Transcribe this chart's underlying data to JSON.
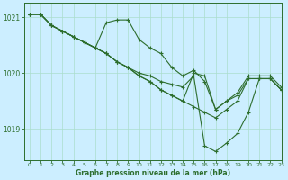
{
  "title": "Graphe pression niveau de la mer (hPa)",
  "bg_color": "#cceeff",
  "line_color": "#2d6e2d",
  "grid_color": "#aaddcc",
  "axis_color": "#2d6e2d",
  "xlim": [
    -0.5,
    23
  ],
  "ylim": [
    1018.45,
    1021.25
  ],
  "yticks": [
    1019,
    1020,
    1021
  ],
  "xticks": [
    0,
    1,
    2,
    3,
    4,
    5,
    6,
    7,
    8,
    9,
    10,
    11,
    12,
    13,
    14,
    15,
    16,
    17,
    18,
    19,
    20,
    21,
    22,
    23
  ],
  "series": [
    [
      1021.05,
      1021.05,
      1020.85,
      1020.75,
      1020.65,
      1020.55,
      1020.45,
      1020.9,
      1020.95,
      1020.95,
      1020.6,
      1020.45,
      1020.35,
      1020.1,
      1019.95,
      1020.05,
      1019.85,
      1019.35,
      1019.5,
      1019.65,
      1019.95,
      1019.95,
      1019.95,
      1019.75
    ],
    [
      1021.05,
      1021.05,
      1020.85,
      1020.75,
      1020.65,
      1020.55,
      1020.45,
      1020.35,
      1020.2,
      1020.1,
      1019.95,
      1019.85,
      1019.7,
      1019.6,
      1019.5,
      1019.4,
      1019.3,
      1019.2,
      1019.35,
      1019.5,
      1019.9,
      1019.9,
      1019.9,
      1019.7
    ],
    [
      1021.05,
      1021.05,
      1020.85,
      1020.75,
      1020.65,
      1020.55,
      1020.45,
      1020.35,
      1020.2,
      1020.1,
      1020.0,
      1019.95,
      1019.85,
      1019.8,
      1019.75,
      1019.95,
      1018.7,
      1018.6,
      1018.75,
      1018.92,
      1019.3,
      1019.9,
      1019.9,
      1019.7
    ],
    [
      1021.05,
      1021.05,
      1020.85,
      1020.75,
      1020.65,
      1020.55,
      1020.45,
      1020.35,
      1020.2,
      1020.1,
      1019.95,
      1019.85,
      1019.7,
      1019.6,
      1019.5,
      1020.0,
      1019.95,
      1019.35,
      1019.5,
      1019.6,
      1019.9,
      1019.9,
      1019.9,
      1019.7
    ]
  ]
}
